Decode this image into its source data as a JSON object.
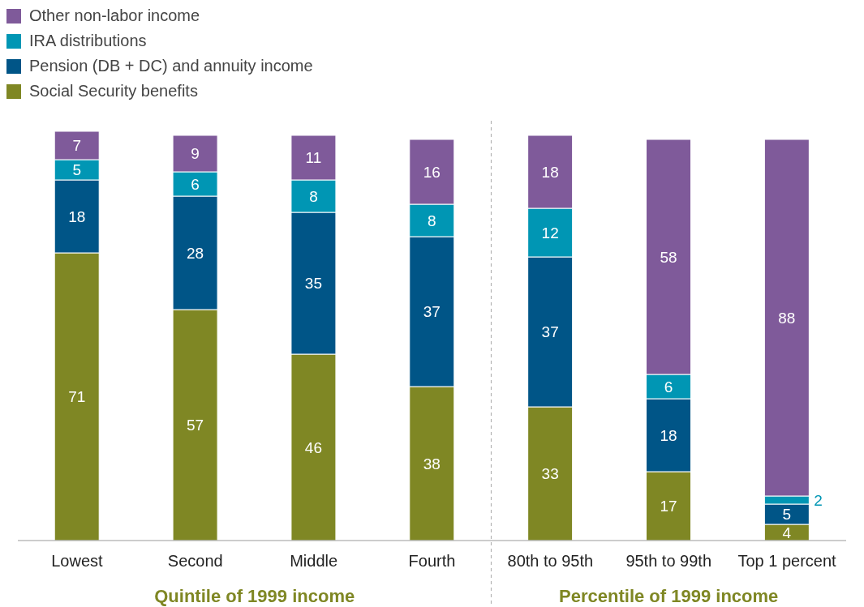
{
  "chart_data": {
    "type": "bar",
    "stacked": true,
    "data_labels": true,
    "legend": "top left",
    "categories": [
      "Lowest",
      "Second",
      "Middle",
      "Fourth",
      "80th to 95th",
      "95th to 99th",
      "Top 1 percent"
    ],
    "series": [
      {
        "name": "Social Security benefits",
        "color": "#7f8724",
        "values": [
          71,
          57,
          46,
          38,
          33,
          17,
          4
        ]
      },
      {
        "name": "Pension (DB + DC) and annuity income",
        "color": "#005587",
        "values": [
          18,
          28,
          35,
          37,
          37,
          18,
          5
        ]
      },
      {
        "name": "IRA distributions",
        "color": "#0096b4",
        "values": [
          5,
          6,
          8,
          8,
          12,
          6,
          2
        ]
      },
      {
        "name": "Other non-labor income",
        "color": "#7f5a9a",
        "values": [
          7,
          9,
          11,
          16,
          18,
          58,
          88
        ]
      }
    ],
    "annotations": [
      "Quintile of 1999 income",
      "Percentile of 1999 income"
    ]
  }
}
